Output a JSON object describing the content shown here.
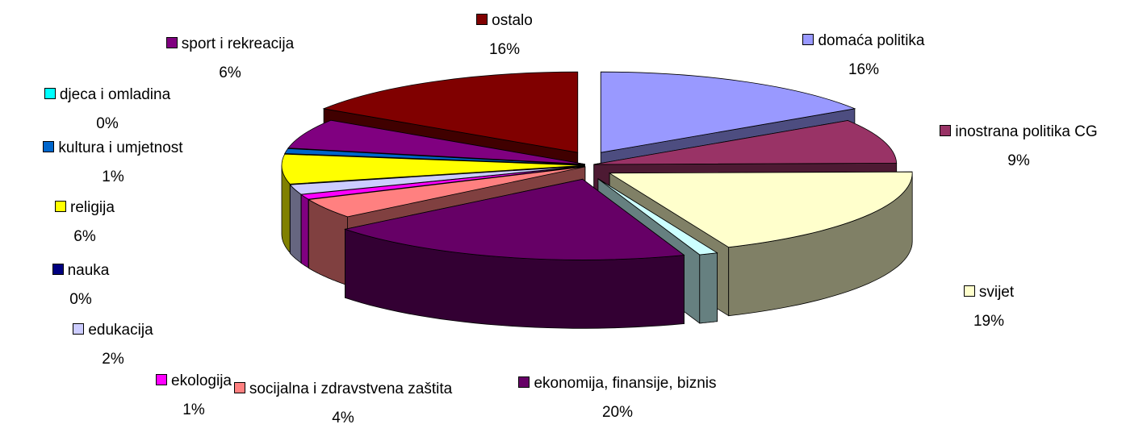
{
  "chart_data": {
    "type": "pie3d",
    "categories": [
      "domaća politika",
      "inostrana politika CG",
      "svijet",
      null,
      "ekonomija, finansije, biznis",
      "socijalna i zdravstvena zaštita",
      "ekologija",
      "edukacija",
      "nauka",
      "religija",
      "kultura i umjetnost",
      "djeca i omladina",
      "sport i rekreacija",
      "ostalo"
    ],
    "values": [
      16,
      9,
      19,
      1,
      20,
      4,
      1,
      2,
      0,
      6,
      1,
      0,
      6,
      16
    ],
    "value_labels": [
      "16%",
      "9%",
      "19%",
      null,
      "20%",
      "4%",
      "1%",
      "2%",
      "0%",
      "6%",
      "1%",
      "0%",
      "6%",
      "16%"
    ],
    "colors": [
      "#9999ff",
      "#993366",
      "#ffffcc",
      "#ccffff",
      "#660066",
      "#ff8080",
      "#ff00ff",
      "#ccccff",
      "#000080",
      "#ffff00",
      "#0066cc",
      "#00ffff",
      "#800080",
      "#800000"
    ]
  }
}
